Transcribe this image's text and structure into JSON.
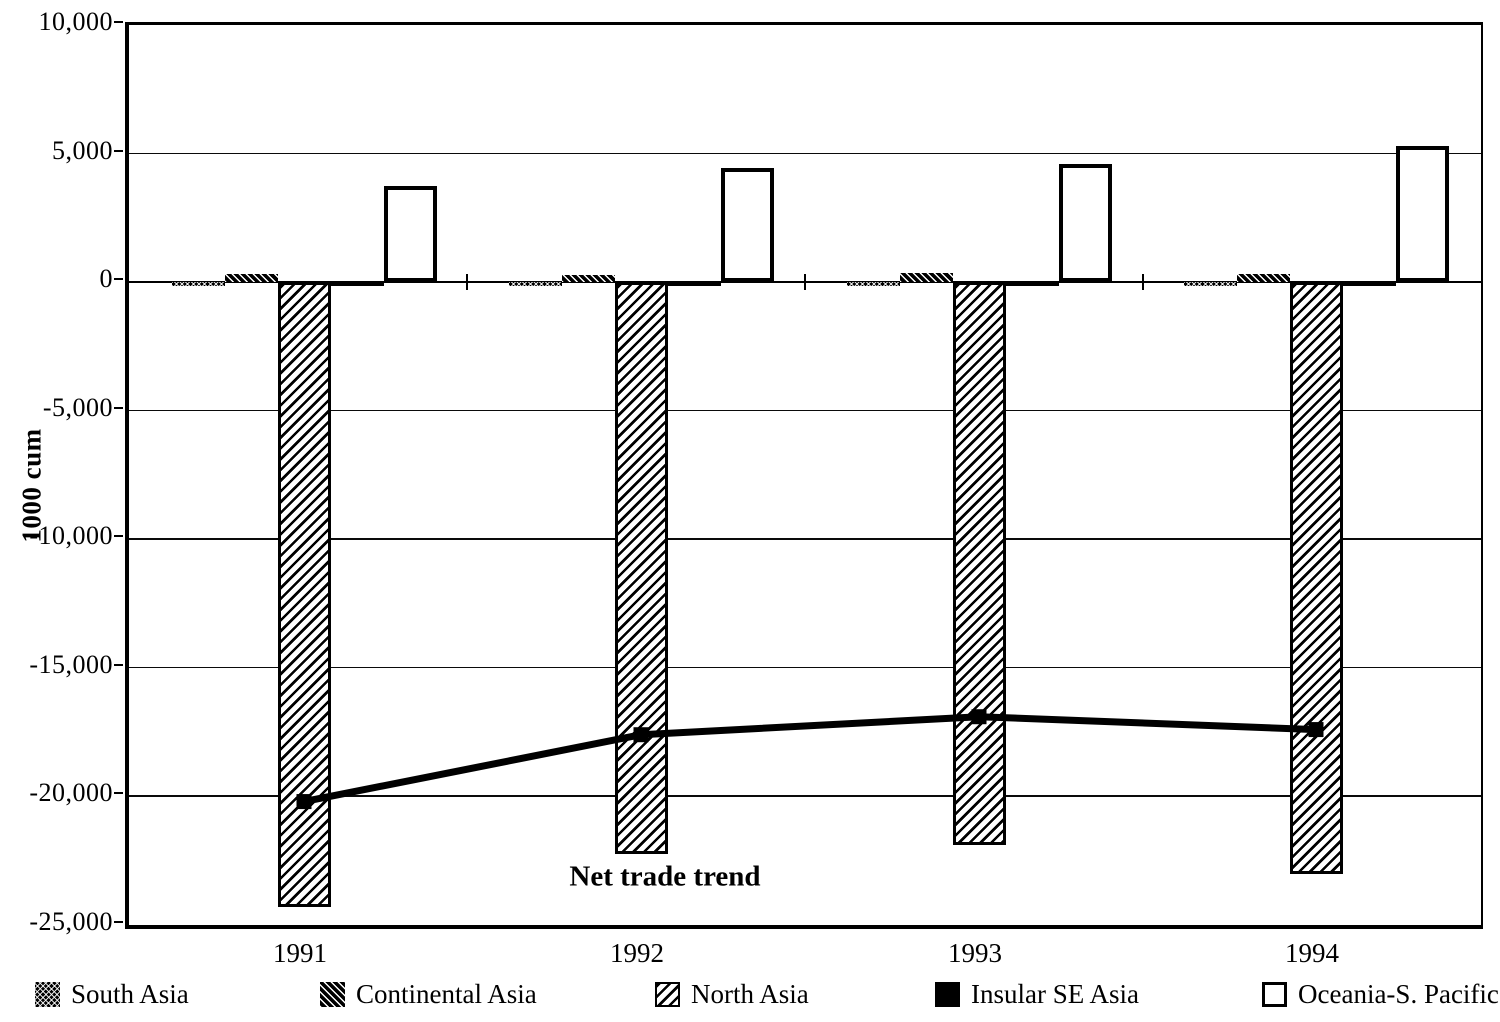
{
  "chart_data": {
    "type": "bar",
    "title": "",
    "categories": [
      "1991",
      "1992",
      "1993",
      "1994"
    ],
    "series": [
      {
        "name": "South Asia",
        "pattern": "crosshatch-dark",
        "values": [
          -150,
          -150,
          -150,
          -150
        ]
      },
      {
        "name": "Continental Asia",
        "pattern": "diagonal-dark",
        "values": [
          300,
          280,
          350,
          310
        ]
      },
      {
        "name": "North Asia",
        "pattern": "diagonal-light",
        "values": [
          -24300,
          -22250,
          -21900,
          -23000
        ]
      },
      {
        "name": "Insular SE Asia",
        "pattern": "solid-black",
        "values": [
          -150,
          -150,
          -150,
          -150
        ]
      },
      {
        "name": "Oceania-S. Pacific",
        "pattern": "white-outline",
        "values": [
          3750,
          4450,
          4600,
          5300
        ]
      }
    ],
    "line_series": {
      "name": "Net trade trend",
      "values": [
        -20200,
        -17600,
        -16900,
        -17400
      ]
    },
    "annotation": "Net trade trend",
    "y_axis": {
      "label": "1000 cum",
      "ticks": [
        {
          "label": "10,000",
          "value": 10000
        },
        {
          "label": "5,000",
          "value": 5000
        },
        {
          "label": "0",
          "value": 0
        },
        {
          "label": "-5,000",
          "value": -5000
        },
        {
          "label": "-10,000",
          "value": -10000
        },
        {
          "label": "-15,000",
          "value": -15000
        },
        {
          "label": "-20,000",
          "value": -20000
        },
        {
          "label": "-25,000",
          "value": -25000
        }
      ]
    },
    "ylim": [
      -25000,
      10000
    ],
    "grid": true,
    "legend_position": "bottom",
    "colors": {
      "ink": "#000000",
      "paper": "#ffffff"
    }
  }
}
